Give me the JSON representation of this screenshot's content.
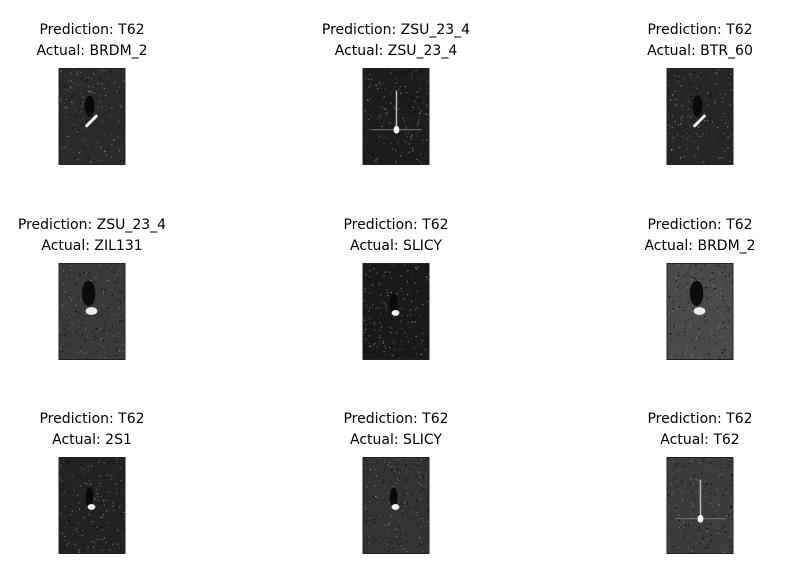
{
  "panels": [
    {
      "prediction": "Prediction: T62",
      "actual": "Actual: BRDM_2",
      "noise": "#2a2a2a",
      "target": "bright-streak"
    },
    {
      "prediction": "Prediction: ZSU_23_4",
      "actual": "Actual: ZSU_23_4",
      "noise": "#1c1c1c",
      "target": "vertical-flare"
    },
    {
      "prediction": "Prediction: T62",
      "actual": "Actual: BTR_60",
      "noise": "#262626",
      "target": "bright-streak"
    },
    {
      "prediction": "Prediction: ZSU_23_4",
      "actual": "Actual: ZIL131",
      "noise": "#3a3a3a",
      "target": "blob"
    },
    {
      "prediction": "Prediction: T62",
      "actual": "Actual: SLICY",
      "noise": "#1a1a1a",
      "target": "small-spot"
    },
    {
      "prediction": "Prediction: T62",
      "actual": "Actual: BRDM_2",
      "noise": "#4a4a4a",
      "target": "blob"
    },
    {
      "prediction": "Prediction: T62",
      "actual": "Actual: 2S1",
      "noise": "#222222",
      "target": "small-spot"
    },
    {
      "prediction": "Prediction: T62",
      "actual": "Actual: SLICY",
      "noise": "#333333",
      "target": "small-spot"
    },
    {
      "prediction": "Prediction: T62",
      "actual": "Actual: T62",
      "noise": "#3c3c3c",
      "target": "vertical-flare"
    }
  ]
}
